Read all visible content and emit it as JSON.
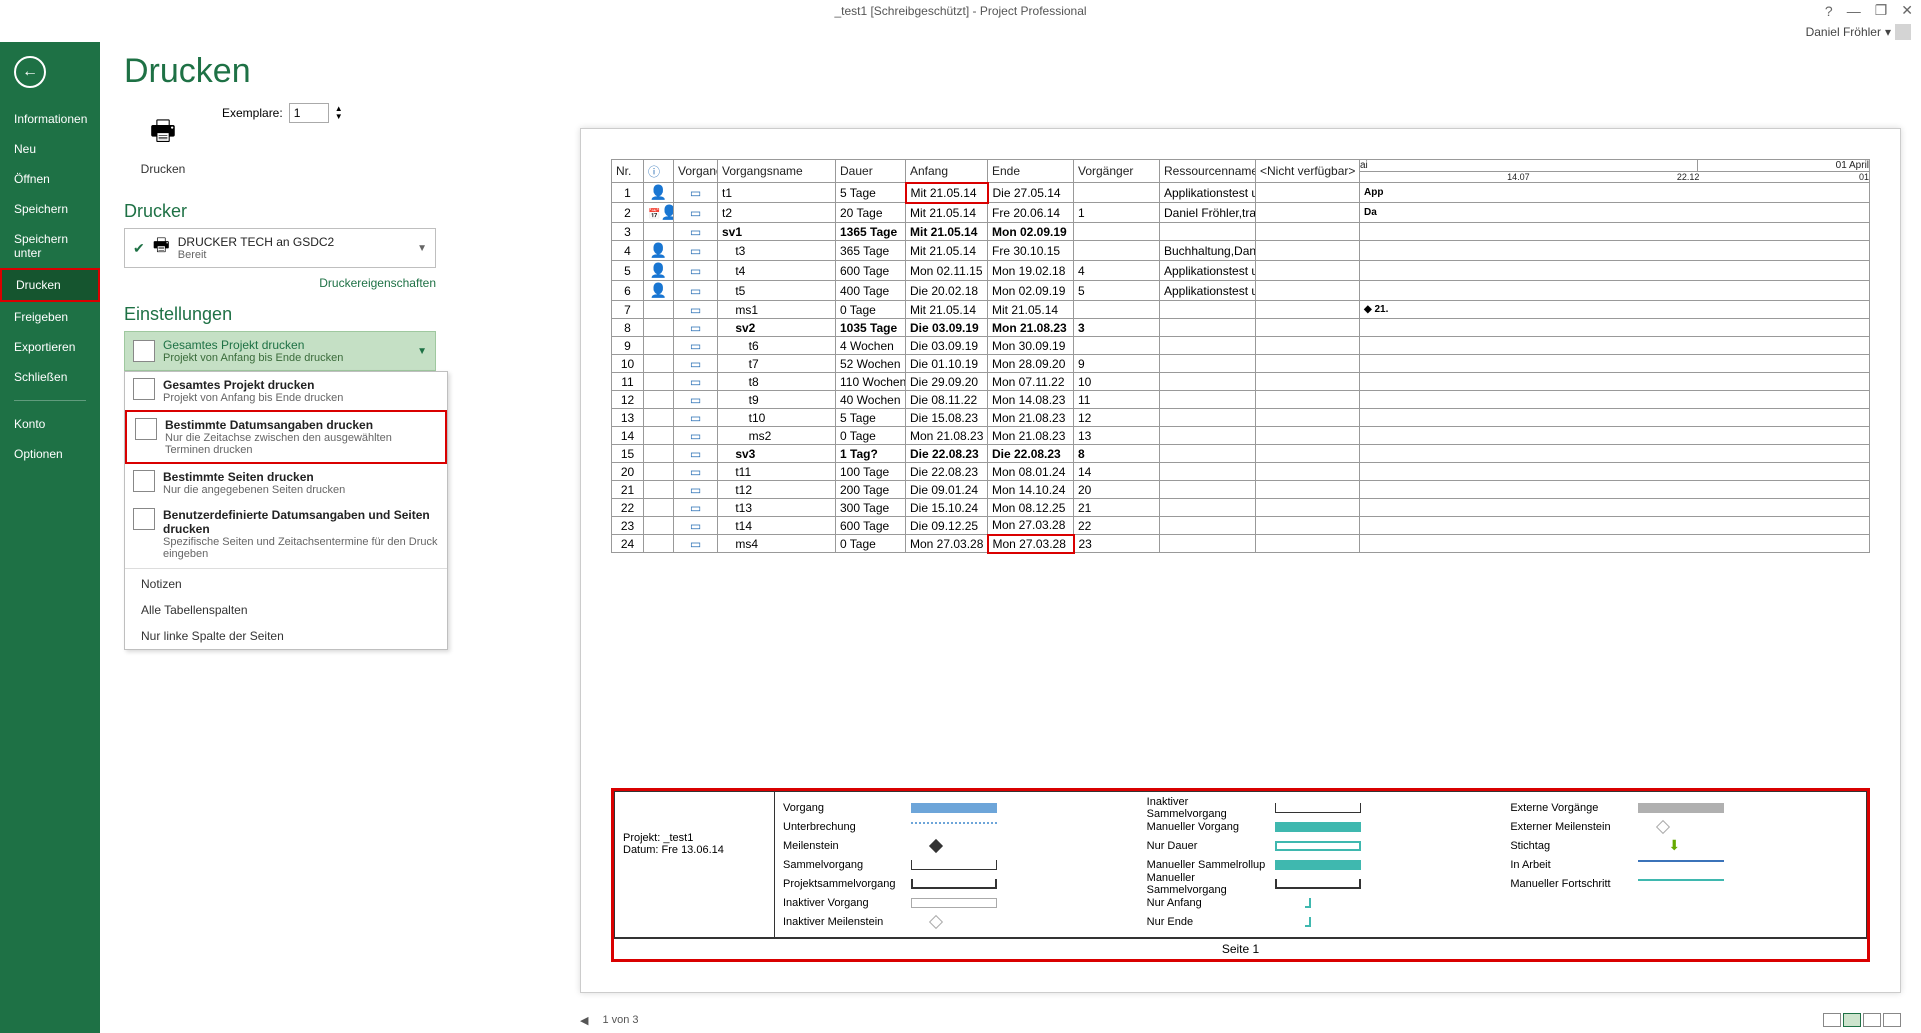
{
  "window": {
    "title": "_test1 [Schreibgeschützt] - Project Professional",
    "user": "Daniel Fröhler"
  },
  "sidebar": {
    "items": [
      "Informationen",
      "Neu",
      "Öffnen",
      "Speichern",
      "Speichern unter",
      "Drucken",
      "Freigeben",
      "Exportieren",
      "Schließen",
      "Konto",
      "Optionen"
    ],
    "active": "Drucken"
  },
  "page": {
    "heading": "Drucken",
    "print_button": "Drucken",
    "copies_label": "Exemplare:",
    "copies_value": "1",
    "printer_heading": "Drucker",
    "printer_name": "DRUCKER TECH an GSDC2",
    "printer_status": "Bereit",
    "printer_props": "Druckereigenschaften",
    "settings_heading": "Einstellungen",
    "settings_selected_title": "Gesamtes Projekt drucken",
    "settings_selected_sub": "Projekt von Anfang bis Ende drucken",
    "dropdown": [
      {
        "title": "Gesamtes Projekt drucken",
        "sub": "Projekt von Anfang bis Ende drucken",
        "hl": false,
        "icon": true
      },
      {
        "title": "Bestimmte Datumsangaben drucken",
        "sub": "Nur die Zeitachse zwischen den ausgewählten Terminen drucken",
        "hl": true,
        "icon": true
      },
      {
        "title": "Bestimmte Seiten drucken",
        "sub": "Nur die angegebenen Seiten drucken",
        "hl": false,
        "icon": true
      },
      {
        "title": "Benutzerdefinierte Datumsangaben und Seiten drucken",
        "sub": "Spezifische Seiten und Zeitachsentermine für den Druck eingeben",
        "hl": false,
        "icon": true
      }
    ],
    "dropdown_plain": [
      "Notizen",
      "Alle Tabellenspalten",
      "Nur linke Spalte der Seiten"
    ]
  },
  "preview": {
    "columns": [
      "Nr.",
      "",
      "Vorgangs",
      "Vorgangsname",
      "Dauer",
      "Anfang",
      "Ende",
      "Vorgänger",
      "Ressourcennamen",
      "<Nicht verfügbar>"
    ],
    "timeline_top": [
      "ai",
      "",
      "01 April"
    ],
    "timeline_sub": [
      "14.07",
      "22.12",
      "01"
    ],
    "rows": [
      {
        "nr": "1",
        "ind": "red",
        "mode": "auto",
        "name": "t1",
        "dauer": "5 Tage",
        "anfang": "Mit 21.05.14",
        "ende": "Die 27.05.14",
        "vor": "",
        "res": "Applikationstest u",
        "anfang_red": true,
        "note": "App"
      },
      {
        "nr": "2",
        "ind": "cal",
        "mode": "auto",
        "name": "t2",
        "dauer": "20 Tage",
        "anfang": "Mit 21.05.14",
        "ende": "Fre 20.06.14",
        "vor": "1",
        "res": "Daniel Fröhler,tra",
        "note": "Da"
      },
      {
        "nr": "3",
        "ind": "",
        "mode": "auto",
        "name": "sv1",
        "dauer": "1365 Tage",
        "anfang": "Mit 21.05.14",
        "ende": "Mon 02.09.19",
        "vor": "",
        "res": "",
        "bold": true
      },
      {
        "nr": "4",
        "ind": "red",
        "mode": "auto",
        "name": "t3",
        "dauer": "365 Tage",
        "anfang": "Mit 21.05.14",
        "ende": "Fre 30.10.15",
        "vor": "",
        "res": "Buchhaltung,Dani",
        "indent": 1
      },
      {
        "nr": "5",
        "ind": "red",
        "mode": "auto",
        "name": "t4",
        "dauer": "600 Tage",
        "anfang": "Mon 02.11.15",
        "ende": "Mon 19.02.18",
        "vor": "4",
        "res": "Applikationstest u",
        "indent": 1
      },
      {
        "nr": "6",
        "ind": "red",
        "mode": "auto",
        "name": "t5",
        "dauer": "400 Tage",
        "anfang": "Die 20.02.18",
        "ende": "Mon 02.09.19",
        "vor": "5",
        "res": "Applikationstest u",
        "indent": 1
      },
      {
        "nr": "7",
        "ind": "",
        "mode": "auto",
        "name": "ms1",
        "dauer": "0 Tage",
        "anfang": "Mit 21.05.14",
        "ende": "Mit 21.05.14",
        "vor": "",
        "res": "",
        "indent": 1,
        "ms": true
      },
      {
        "nr": "8",
        "ind": "",
        "mode": "auto",
        "name": "sv2",
        "dauer": "1035 Tage",
        "anfang": "Die 03.09.19",
        "ende": "Mon 21.08.23",
        "vor": "3",
        "res": "",
        "bold": true,
        "indent": 1
      },
      {
        "nr": "9",
        "ind": "",
        "mode": "auto",
        "name": "t6",
        "dauer": "4 Wochen",
        "anfang": "Die 03.09.19",
        "ende": "Mon 30.09.19",
        "vor": "",
        "res": "",
        "indent": 2
      },
      {
        "nr": "10",
        "ind": "",
        "mode": "auto",
        "name": "t7",
        "dauer": "52 Wochen",
        "anfang": "Die 01.10.19",
        "ende": "Mon 28.09.20",
        "vor": "9",
        "res": "",
        "indent": 2
      },
      {
        "nr": "11",
        "ind": "",
        "mode": "auto",
        "name": "t8",
        "dauer": "110 Wochen",
        "anfang": "Die 29.09.20",
        "ende": "Mon 07.11.22",
        "vor": "10",
        "res": "",
        "indent": 2
      },
      {
        "nr": "12",
        "ind": "",
        "mode": "auto",
        "name": "t9",
        "dauer": "40 Wochen",
        "anfang": "Die 08.11.22",
        "ende": "Mon 14.08.23",
        "vor": "11",
        "res": "",
        "indent": 2
      },
      {
        "nr": "13",
        "ind": "",
        "mode": "auto",
        "name": "t10",
        "dauer": "5 Tage",
        "anfang": "Die 15.08.23",
        "ende": "Mon 21.08.23",
        "vor": "12",
        "res": "",
        "indent": 2
      },
      {
        "nr": "14",
        "ind": "",
        "mode": "auto",
        "name": "ms2",
        "dauer": "0 Tage",
        "anfang": "Mon 21.08.23",
        "ende": "Mon 21.08.23",
        "vor": "13",
        "res": "",
        "indent": 2
      },
      {
        "nr": "15",
        "ind": "",
        "mode": "auto",
        "name": "sv3",
        "dauer": "1 Tag?",
        "anfang": "Die 22.08.23",
        "ende": "Die 22.08.23",
        "vor": "8",
        "res": "",
        "bold": true,
        "indent": 1
      },
      {
        "nr": "20",
        "ind": "",
        "mode": "auto",
        "name": "t11",
        "dauer": "100 Tage",
        "anfang": "Die 22.08.23",
        "ende": "Mon 08.01.24",
        "vor": "14",
        "res": "",
        "indent": 1
      },
      {
        "nr": "21",
        "ind": "",
        "mode": "auto",
        "name": "t12",
        "dauer": "200 Tage",
        "anfang": "Die 09.01.24",
        "ende": "Mon 14.10.24",
        "vor": "20",
        "res": "",
        "indent": 1
      },
      {
        "nr": "22",
        "ind": "",
        "mode": "auto",
        "name": "t13",
        "dauer": "300 Tage",
        "anfang": "Die 15.10.24",
        "ende": "Mon 08.12.25",
        "vor": "21",
        "res": "",
        "indent": 1
      },
      {
        "nr": "23",
        "ind": "",
        "mode": "auto",
        "name": "t14",
        "dauer": "600 Tage",
        "anfang": "Die 09.12.25",
        "ende": "Mon 27.03.28",
        "vor": "22",
        "res": "",
        "indent": 1
      },
      {
        "nr": "24",
        "ind": "",
        "mode": "auto",
        "name": "ms4",
        "dauer": "0 Tage",
        "anfang": "Mon 27.03.28",
        "ende": "Mon 27.03.28",
        "vor": "23",
        "res": "",
        "ende_red": true,
        "indent": 1
      }
    ],
    "legend": {
      "project_label": "Projekt: _test1",
      "date_label": "Datum: Fre 13.06.14",
      "col1": [
        "Vorgang",
        "Unterbrechung",
        "Meilenstein",
        "Sammelvorgang",
        "Projektsammelvorgang",
        "Inaktiver Vorgang",
        "Inaktiver Meilenstein"
      ],
      "col2": [
        "Inaktiver Sammelvorgang",
        "Manueller Vorgang",
        "Nur Dauer",
        "Manueller Sammelrollup",
        "Manueller Sammelvorgang",
        "Nur Anfang",
        "Nur Ende"
      ],
      "col3": [
        "Externe Vorgänge",
        "Externer Meilenstein",
        "Stichtag",
        "In Arbeit",
        "Manueller Fortschritt"
      ],
      "footer": "Seite 1"
    }
  },
  "status": {
    "page": "1 von 3"
  },
  "colors": {
    "accent": "#1e7145",
    "highlight": "#d90000"
  }
}
